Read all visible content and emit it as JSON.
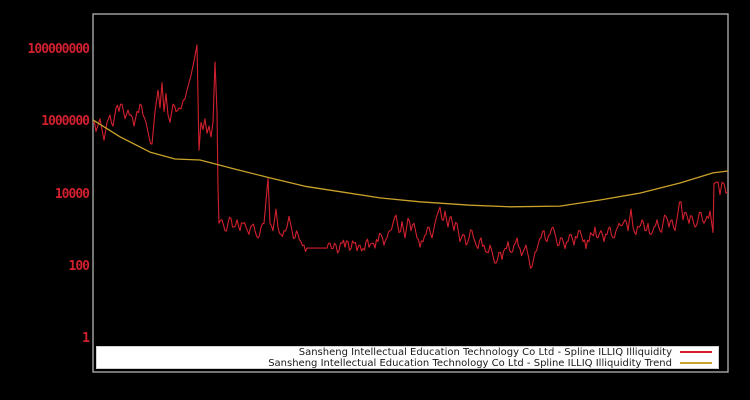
{
  "colors": {
    "background": "#000000",
    "plot_border": "#b3b3b3",
    "illiquidity_line": "#d2202e",
    "trend_line": "#c9a22b",
    "tick_label": "#d2202e",
    "legend_background": "#ffffff",
    "legend_text": "#1a1a1a"
  },
  "chart_data": {
    "type": "line",
    "title": "",
    "xlabel": "",
    "ylabel": "",
    "y_scale": "log",
    "grid": false,
    "x_tick_labels": [],
    "y_ticks": [
      1,
      100,
      10000,
      1000000,
      100000000
    ],
    "y_tick_labels": [
      "1",
      "100",
      "10000",
      "1000000",
      "100000000"
    ],
    "ylim": [
      0.12,
      1000000000
    ],
    "legend_position": "lower-center-inside",
    "series": [
      {
        "name": "Sansheng Intellectual Education Technology Co Ltd - Spline ILLIQ Illiquidity",
        "color": "#d2202e",
        "noisy": true,
        "points": [
          [
            0,
            1000000.0
          ],
          [
            3,
            560000.0
          ],
          [
            7,
            1260000.0
          ],
          [
            11,
            320000.0
          ],
          [
            14,
            1000000.0
          ],
          [
            17,
            1600000.0
          ],
          [
            20,
            790000.0
          ],
          [
            23,
            2500000.0
          ],
          [
            26,
            2000000.0
          ],
          [
            29,
            3200000.0
          ],
          [
            32,
            1260000.0
          ],
          [
            35,
            2200000.0
          ],
          [
            38,
            1600000.0
          ],
          [
            41,
            790000.0
          ],
          [
            44,
            2000000.0
          ],
          [
            47,
            3200000.0
          ],
          [
            50,
            1600000.0
          ],
          [
            53,
            1000000.0
          ],
          [
            56,
            400000.0
          ],
          [
            59,
            250000.0
          ],
          [
            62,
            2000000.0
          ],
          [
            65,
            7900000.0
          ],
          [
            67,
            2500000.0
          ],
          [
            69,
            12600000.0
          ],
          [
            71,
            2000000.0
          ],
          [
            73,
            6300000.0
          ],
          [
            75,
            1600000.0
          ],
          [
            77,
            1000000.0
          ],
          [
            80,
            3200000.0
          ],
          [
            83,
            2000000.0
          ],
          [
            86,
            2500000.0
          ],
          [
            90,
            4000000.0
          ],
          [
            94,
            7900000.0
          ],
          [
            98,
            20000000.0
          ],
          [
            101,
            50000000.0
          ],
          [
            104,
            140000000.0
          ],
          [
            106,
            170000.0
          ],
          [
            108,
            1000000.0
          ],
          [
            110,
            630000.0
          ],
          [
            112,
            1260000.0
          ],
          [
            114,
            500000.0
          ],
          [
            116,
            790000.0
          ],
          [
            118,
            400000.0
          ],
          [
            120,
            1000000.0
          ],
          [
            122,
            47000000.0
          ],
          [
            124,
            2000000.0
          ],
          [
            125,
            16000.0
          ],
          [
            126,
            1600.0
          ],
          [
            129,
            2000.0
          ],
          [
            132,
            1000.0
          ],
          [
            135,
            1600.0
          ],
          [
            138,
            2200.0
          ],
          [
            141,
            1260.0
          ],
          [
            144,
            2000.0
          ],
          [
            147,
            1000.0
          ],
          [
            150,
            1600.0
          ],
          [
            153,
            1260.0
          ],
          [
            156,
            790.0
          ],
          [
            159,
            1400.0
          ],
          [
            162,
            1000.0
          ],
          [
            165,
            630.0
          ],
          [
            168,
            1260.0
          ],
          [
            171,
            1600.0
          ],
          [
            175,
            28000.0
          ],
          [
            177,
            1600.0
          ],
          [
            180,
            1000.0
          ],
          [
            183,
            4000.0
          ],
          [
            185,
            1260.0
          ],
          [
            188,
            790.0
          ],
          [
            191,
            1000.0
          ],
          [
            194,
            1260.0
          ],
          [
            196,
            2500.0
          ],
          [
            199,
            1000.0
          ],
          [
            202,
            630.0
          ],
          [
            205,
            790.0
          ],
          [
            208,
            500.0
          ],
          [
            211,
            400.0
          ],
          [
            214,
            330.0
          ],
          [
            234,
            330.0
          ],
          [
            237,
            450.0
          ],
          [
            240,
            320.0
          ],
          [
            243,
            400.0
          ],
          [
            246,
            280.0
          ],
          [
            249,
            450.0
          ],
          [
            252,
            350.0
          ],
          [
            255,
            500.0
          ],
          [
            258,
            320.0
          ],
          [
            261,
            450.0
          ],
          [
            264,
            280.0
          ],
          [
            267,
            400.0
          ],
          [
            270,
            320.0
          ],
          [
            273,
            500.0
          ],
          [
            276,
            350.0
          ],
          [
            279,
            450.0
          ],
          [
            282,
            330.0
          ],
          [
            285,
            500.0
          ],
          [
            288,
            790.0
          ],
          [
            291,
            400.0
          ],
          [
            294,
            630.0
          ],
          [
            297,
            1000.0
          ],
          [
            300,
            1600.0
          ],
          [
            303,
            2700.0
          ],
          [
            306,
            900.0
          ],
          [
            309,
            1800.0
          ],
          [
            312,
            630.0
          ],
          [
            315,
            2200.0
          ],
          [
            318,
            1000.0
          ],
          [
            321,
            1600.0
          ],
          [
            324,
            630.0
          ],
          [
            327,
            350.0
          ],
          [
            330,
            500.0
          ],
          [
            333,
            790.0
          ],
          [
            336,
            1260.0
          ],
          [
            339,
            630.0
          ],
          [
            342,
            1600.0
          ],
          [
            345,
            3200.0
          ],
          [
            347,
            4500.0
          ],
          [
            349,
            2000.0
          ],
          [
            352,
            3500.0
          ],
          [
            355,
            1260.0
          ],
          [
            358,
            2500.0
          ],
          [
            361,
            1000.0
          ],
          [
            364,
            1600.0
          ],
          [
            367,
            500.0
          ],
          [
            370,
            790.0
          ],
          [
            373,
            400.0
          ],
          [
            376,
            630.0
          ],
          [
            379,
            1000.0
          ],
          [
            382,
            500.0
          ],
          [
            385,
            320.0
          ],
          [
            388,
            630.0
          ],
          [
            391,
            400.0
          ],
          [
            394,
            250.0
          ],
          [
            397,
            400.0
          ],
          [
            400,
            200.0
          ],
          [
            403,
            126.0
          ],
          [
            406,
            250.0
          ],
          [
            409,
            160.0
          ],
          [
            412,
            320.0
          ],
          [
            415,
            500.0
          ],
          [
            418,
            250.0
          ],
          [
            421,
            400.0
          ],
          [
            424,
            630.0
          ],
          [
            427,
            320.0
          ],
          [
            430,
            250.0
          ],
          [
            433,
            400.0
          ],
          [
            436,
            160.0
          ],
          [
            439,
            100.0
          ],
          [
            442,
            250.0
          ],
          [
            445,
            400.0
          ],
          [
            448,
            630.0
          ],
          [
            451,
            1000.0
          ],
          [
            454,
            500.0
          ],
          [
            457,
            790.0
          ],
          [
            460,
            1260.0
          ],
          [
            463,
            630.0
          ],
          [
            466,
            400.0
          ],
          [
            469,
            630.0
          ],
          [
            472,
            320.0
          ],
          [
            475,
            500.0
          ],
          [
            478,
            790.0
          ],
          [
            481,
            400.0
          ],
          [
            484,
            630.0
          ],
          [
            487,
            1000.0
          ],
          [
            490,
            500.0
          ],
          [
            493,
            320.0
          ],
          [
            496,
            500.0
          ],
          [
            499,
            790.0
          ],
          [
            502,
            1260.0
          ],
          [
            505,
            630.0
          ],
          [
            508,
            1000.0
          ],
          [
            511,
            500.0
          ],
          [
            514,
            790.0
          ],
          [
            517,
            1260.0
          ],
          [
            520,
            630.0
          ],
          [
            523,
            1000.0
          ],
          [
            526,
            1600.0
          ],
          [
            529,
            1400.0
          ],
          [
            532,
            2000.0
          ],
          [
            535,
            1000.0
          ],
          [
            538,
            4000.0
          ],
          [
            540,
            1260.0
          ],
          [
            543,
            790.0
          ],
          [
            546,
            1260.0
          ],
          [
            549,
            2000.0
          ],
          [
            552,
            1000.0
          ],
          [
            555,
            1600.0
          ],
          [
            558,
            790.0
          ],
          [
            561,
            1260.0
          ],
          [
            564,
            2000.0
          ],
          [
            567,
            1000.0
          ],
          [
            570,
            1600.0
          ],
          [
            573,
            2500.0
          ],
          [
            576,
            1260.0
          ],
          [
            579,
            2000.0
          ],
          [
            582,
            1000.0
          ],
          [
            585,
            3200.0
          ],
          [
            588,
            6300.0
          ],
          [
            590,
            2000.0
          ],
          [
            593,
            3200.0
          ],
          [
            596,
            1600.0
          ],
          [
            599,
            2500.0
          ],
          [
            602,
            1260.0
          ],
          [
            605,
            2000.0
          ],
          [
            608,
            3200.0
          ],
          [
            611,
            1600.0
          ],
          [
            614,
            2500.0
          ],
          [
            617,
            3500.0
          ],
          [
            620,
            900.0
          ],
          [
            621,
            20000.0
          ],
          [
            623,
            22000.0
          ],
          [
            625,
            22000.0
          ],
          [
            627,
            10000.0
          ],
          [
            629,
            22000.0
          ],
          [
            631,
            20000.0
          ],
          [
            633,
            11000.0
          ],
          [
            635,
            12000.0
          ]
        ]
      },
      {
        "name": "Sansheng Intellectual Education Technology Co Ltd - Spline ILLIQ Illiquidity Trend",
        "color": "#c9a22b",
        "noisy": false,
        "points": [
          [
            0,
            1170000.0
          ],
          [
            27,
            400000.0
          ],
          [
            57,
            150000.0
          ],
          [
            82,
            97000.0
          ],
          [
            107,
            91000.0
          ],
          [
            142,
            51000.0
          ],
          [
            177,
            29000.0
          ],
          [
            212,
            17000.0
          ],
          [
            247,
            12000.0
          ],
          [
            287,
            8100.0
          ],
          [
            327,
            6300.0
          ],
          [
            377,
            5100.0
          ],
          [
            417,
            4600.0
          ],
          [
            467,
            4800.0
          ],
          [
            507,
            7100.0
          ],
          [
            547,
            11000.0
          ],
          [
            587,
            21000.0
          ],
          [
            620,
            40000.0
          ],
          [
            635,
            45000.0
          ]
        ]
      }
    ]
  }
}
